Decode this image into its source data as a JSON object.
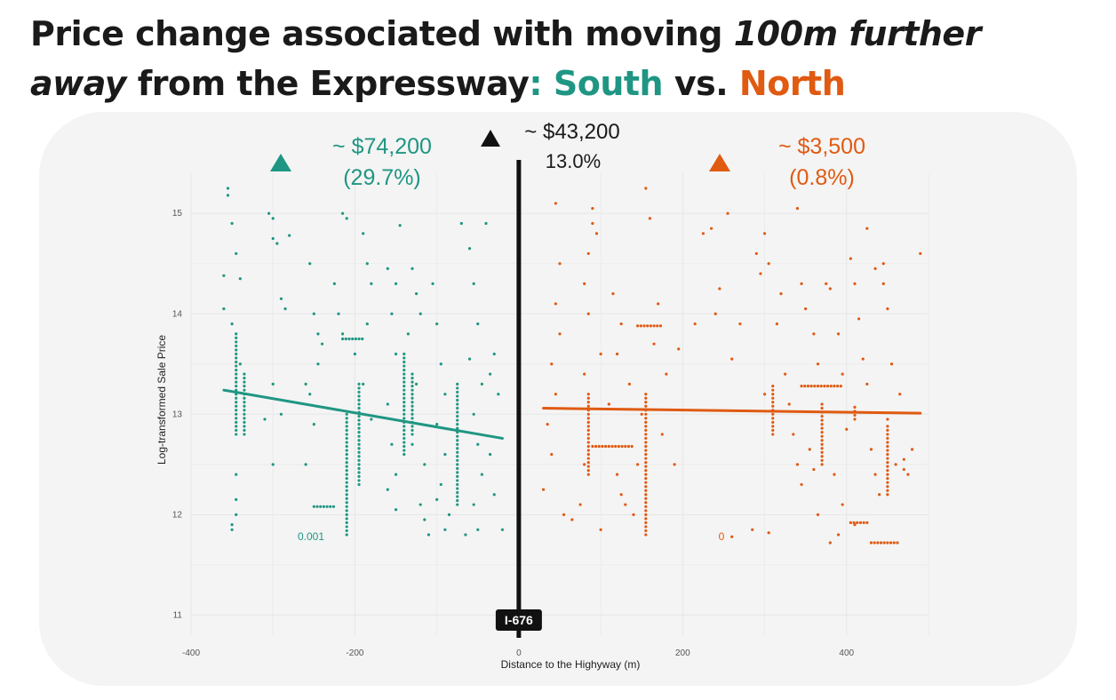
{
  "title": {
    "part1": "Price change associated with moving ",
    "emph1": "100m further",
    "emph2": "away",
    "part2": " from the Expressway",
    "colon": ": ",
    "south": "South",
    "vs": " vs. ",
    "north": "North"
  },
  "colors": {
    "south": "#1f9683",
    "north": "#e05a12",
    "highway": "#111111",
    "grid": "#e6e6e6"
  },
  "annotations": {
    "south_value": "~ $74,200",
    "south_pct": "(29.7%)",
    "overall_value": "~ $43,200",
    "overall_pct": "13.0%",
    "north_value": "~ $3,500",
    "north_pct": "(0.8%)",
    "south_pvalue": "0.001",
    "north_pvalue": "0",
    "highway_label": "I-676"
  },
  "chart_data": {
    "type": "scatter",
    "xlabel": "Distance to the Highyway (m)",
    "ylabel": "Log-transformed Sale Price",
    "xlim": [
      -400,
      500
    ],
    "ylim": [
      10.8,
      15.4
    ],
    "x_ticks": [
      -400,
      -200,
      0,
      200,
      400
    ],
    "y_ticks": [
      11,
      12,
      13,
      14,
      15
    ],
    "grid": true,
    "highway_x": 0,
    "series": [
      {
        "name": "South",
        "regression": {
          "x": [
            -360,
            -20
          ],
          "y": [
            13.24,
            12.76
          ]
        },
        "columns": [
          {
            "x": -345,
            "y": [
              12.8,
              13.8
            ]
          },
          {
            "x": -335,
            "y": [
              12.8,
              13.4
            ]
          },
          {
            "x": -210,
            "y": [
              11.8,
              13.0
            ]
          },
          {
            "x": -195,
            "y": [
              12.3,
              13.3
            ]
          },
          {
            "x": -140,
            "y": [
              12.6,
              13.6
            ]
          },
          {
            "x": -75,
            "y": [
              12.1,
              13.3
            ]
          },
          {
            "x": -130,
            "y": [
              12.8,
              13.4
            ]
          }
        ],
        "rows": [
          {
            "y": 12.08,
            "x": [
              -250,
              -225
            ]
          },
          {
            "y": 13.75,
            "x": [
              -215,
              -190
            ]
          }
        ],
        "points": [
          [
            -355,
            15.25
          ],
          [
            -355,
            15.18
          ],
          [
            -350,
            14.9
          ],
          [
            -345,
            14.6
          ],
          [
            -340,
            14.35
          ],
          [
            -360,
            14.38
          ],
          [
            -360,
            14.05
          ],
          [
            -350,
            13.9
          ],
          [
            -340,
            13.5
          ],
          [
            -345,
            12.4
          ],
          [
            -345,
            12.15
          ],
          [
            -350,
            11.9
          ],
          [
            -350,
            11.85
          ],
          [
            -345,
            12.0
          ],
          [
            -305,
            15.0
          ],
          [
            -300,
            14.95
          ],
          [
            -300,
            14.75
          ],
          [
            -295,
            14.7
          ],
          [
            -290,
            14.15
          ],
          [
            -285,
            14.05
          ],
          [
            -300,
            13.3
          ],
          [
            -290,
            13.0
          ],
          [
            -310,
            12.95
          ],
          [
            -300,
            12.5
          ],
          [
            -280,
            14.78
          ],
          [
            -255,
            14.5
          ],
          [
            -250,
            14.0
          ],
          [
            -245,
            13.8
          ],
          [
            -240,
            13.7
          ],
          [
            -245,
            13.5
          ],
          [
            -260,
            13.3
          ],
          [
            -255,
            13.2
          ],
          [
            -250,
            12.9
          ],
          [
            -260,
            12.5
          ],
          [
            -215,
            15.0
          ],
          [
            -210,
            14.95
          ],
          [
            -225,
            14.3
          ],
          [
            -220,
            14.0
          ],
          [
            -215,
            13.8
          ],
          [
            -200,
            13.6
          ],
          [
            -190,
            14.8
          ],
          [
            -185,
            14.5
          ],
          [
            -180,
            14.3
          ],
          [
            -185,
            13.9
          ],
          [
            -190,
            13.3
          ],
          [
            -180,
            12.95
          ],
          [
            -160,
            14.45
          ],
          [
            -150,
            14.3
          ],
          [
            -155,
            14.0
          ],
          [
            -150,
            13.6
          ],
          [
            -160,
            13.1
          ],
          [
            -155,
            12.7
          ],
          [
            -150,
            12.4
          ],
          [
            -160,
            12.25
          ],
          [
            -150,
            12.05
          ],
          [
            -145,
            14.88
          ],
          [
            -130,
            14.45
          ],
          [
            -125,
            14.2
          ],
          [
            -120,
            14.0
          ],
          [
            -135,
            13.8
          ],
          [
            -125,
            13.3
          ],
          [
            -130,
            12.7
          ],
          [
            -115,
            12.5
          ],
          [
            -120,
            12.1
          ],
          [
            -110,
            11.8
          ],
          [
            -115,
            11.95
          ],
          [
            -105,
            14.3
          ],
          [
            -100,
            13.9
          ],
          [
            -95,
            13.5
          ],
          [
            -90,
            13.2
          ],
          [
            -100,
            12.9
          ],
          [
            -90,
            12.6
          ],
          [
            -95,
            12.3
          ],
          [
            -100,
            12.15
          ],
          [
            -85,
            12.0
          ],
          [
            -90,
            11.85
          ],
          [
            -70,
            14.9
          ],
          [
            -60,
            14.65
          ],
          [
            -55,
            14.3
          ],
          [
            -50,
            13.9
          ],
          [
            -60,
            13.55
          ],
          [
            -45,
            13.3
          ],
          [
            -55,
            13.0
          ],
          [
            -50,
            12.7
          ],
          [
            -45,
            12.4
          ],
          [
            -55,
            12.1
          ],
          [
            -50,
            11.85
          ],
          [
            -40,
            14.9
          ],
          [
            -30,
            13.6
          ],
          [
            -35,
            13.4
          ],
          [
            -25,
            13.2
          ],
          [
            -35,
            12.6
          ],
          [
            -30,
            12.2
          ],
          [
            -20,
            11.85
          ],
          [
            -65,
            11.8
          ]
        ]
      },
      {
        "name": "North",
        "regression": {
          "x": [
            30,
            490
          ],
          "y": [
            13.06,
            13.01
          ]
        },
        "columns": [
          {
            "x": 85,
            "y": [
              12.4,
              13.2
            ]
          },
          {
            "x": 155,
            "y": [
              11.8,
              13.2
            ]
          },
          {
            "x": 310,
            "y": [
              12.8,
              13.3
            ]
          },
          {
            "x": 370,
            "y": [
              12.5,
              13.1
            ]
          },
          {
            "x": 450,
            "y": [
              12.2,
              12.9
            ]
          },
          {
            "x": 410,
            "y": [
              12.95,
              13.1
            ]
          }
        ],
        "rows": [
          {
            "y": 12.68,
            "x": [
              90,
              140
            ]
          },
          {
            "y": 13.88,
            "x": [
              145,
              175
            ]
          },
          {
            "y": 11.72,
            "x": [
              430,
              465
            ]
          },
          {
            "y": 11.92,
            "x": [
              405,
              425
            ]
          },
          {
            "y": 13.28,
            "x": [
              345,
              395
            ]
          }
        ],
        "points": [
          [
            45,
            15.1
          ],
          [
            50,
            14.5
          ],
          [
            45,
            14.1
          ],
          [
            50,
            13.8
          ],
          [
            40,
            13.5
          ],
          [
            45,
            13.2
          ],
          [
            35,
            12.9
          ],
          [
            40,
            12.6
          ],
          [
            30,
            12.25
          ],
          [
            55,
            12.0
          ],
          [
            65,
            11.95
          ],
          [
            75,
            12.1
          ],
          [
            80,
            12.5
          ],
          [
            80,
            13.4
          ],
          [
            85,
            14.0
          ],
          [
            80,
            14.3
          ],
          [
            85,
            14.6
          ],
          [
            90,
            15.05
          ],
          [
            90,
            14.9
          ],
          [
            95,
            14.8
          ],
          [
            100,
            13.6
          ],
          [
            110,
            13.1
          ],
          [
            120,
            12.4
          ],
          [
            125,
            12.2
          ],
          [
            130,
            12.1
          ],
          [
            100,
            11.85
          ],
          [
            115,
            14.2
          ],
          [
            125,
            13.9
          ],
          [
            120,
            13.6
          ],
          [
            135,
            13.3
          ],
          [
            145,
            12.5
          ],
          [
            150,
            13.0
          ],
          [
            140,
            12.0
          ],
          [
            155,
            15.25
          ],
          [
            160,
            14.95
          ],
          [
            170,
            14.1
          ],
          [
            165,
            13.7
          ],
          [
            180,
            13.4
          ],
          [
            175,
            12.8
          ],
          [
            190,
            12.5
          ],
          [
            195,
            13.65
          ],
          [
            215,
            13.9
          ],
          [
            225,
            14.8
          ],
          [
            235,
            14.85
          ],
          [
            240,
            14.0
          ],
          [
            245,
            14.25
          ],
          [
            255,
            15.0
          ],
          [
            260,
            13.55
          ],
          [
            270,
            13.9
          ],
          [
            285,
            11.85
          ],
          [
            290,
            14.6
          ],
          [
            295,
            14.4
          ],
          [
            300,
            14.8
          ],
          [
            305,
            14.5
          ],
          [
            300,
            13.2
          ],
          [
            315,
            13.9
          ],
          [
            320,
            14.2
          ],
          [
            325,
            13.4
          ],
          [
            330,
            13.1
          ],
          [
            335,
            12.8
          ],
          [
            340,
            12.5
          ],
          [
            345,
            12.3
          ],
          [
            345,
            14.3
          ],
          [
            350,
            14.05
          ],
          [
            360,
            13.8
          ],
          [
            365,
            13.5
          ],
          [
            355,
            12.65
          ],
          [
            360,
            12.45
          ],
          [
            375,
            14.3
          ],
          [
            380,
            14.25
          ],
          [
            390,
            13.8
          ],
          [
            395,
            13.4
          ],
          [
            400,
            12.85
          ],
          [
            385,
            12.4
          ],
          [
            395,
            12.1
          ],
          [
            405,
            14.55
          ],
          [
            410,
            14.3
          ],
          [
            415,
            13.95
          ],
          [
            420,
            13.55
          ],
          [
            425,
            13.3
          ],
          [
            430,
            12.65
          ],
          [
            435,
            12.4
          ],
          [
            440,
            12.2
          ],
          [
            425,
            14.85
          ],
          [
            435,
            14.45
          ],
          [
            445,
            14.3
          ],
          [
            450,
            14.05
          ],
          [
            455,
            13.5
          ],
          [
            460,
            12.5
          ],
          [
            470,
            12.55
          ],
          [
            475,
            12.4
          ],
          [
            480,
            12.65
          ],
          [
            490,
            14.6
          ],
          [
            340,
            15.05
          ],
          [
            365,
            12.0
          ],
          [
            390,
            11.8
          ],
          [
            260,
            11.78
          ],
          [
            305,
            11.82
          ],
          [
            380,
            11.72
          ],
          [
            410,
            11.9
          ],
          [
            450,
            12.95
          ],
          [
            465,
            13.2
          ],
          [
            470,
            12.45
          ],
          [
            445,
            14.5
          ]
        ]
      }
    ]
  }
}
